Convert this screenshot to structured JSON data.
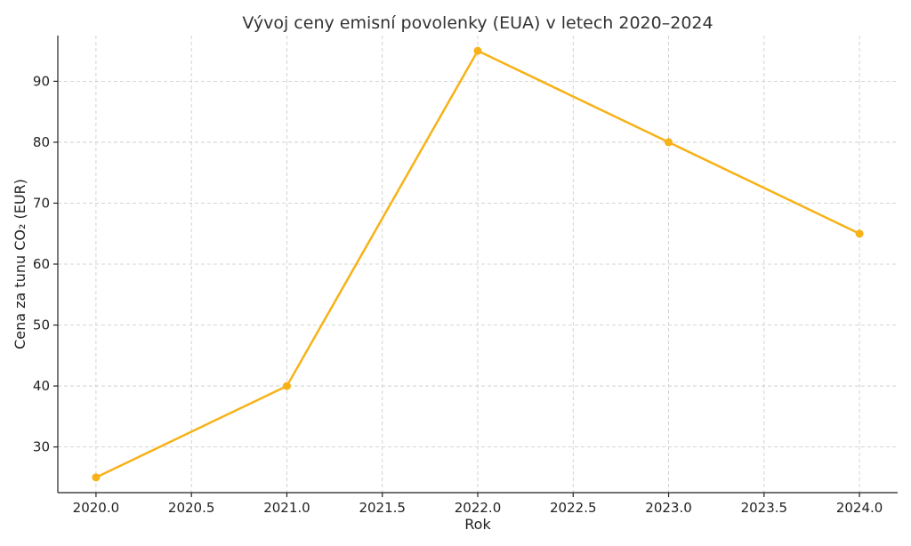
{
  "chart_data": {
    "type": "line",
    "title": "Vývoj ceny emisní povolenky (EUA) v letech 2020–2024",
    "xlabel": "Rok",
    "ylabel": "Cena za tunu CO₂ (EUR)",
    "xlim": [
      2019.8,
      2024.2
    ],
    "ylim": [
      22.5,
      97.5
    ],
    "x_ticks": [
      2020.0,
      2020.5,
      2021.0,
      2021.5,
      2022.0,
      2022.5,
      2023.0,
      2023.5,
      2024.0
    ],
    "x_tick_labels": [
      "2020.0",
      "2020.5",
      "2021.0",
      "2021.5",
      "2022.0",
      "2022.5",
      "2023.0",
      "2023.5",
      "2024.0"
    ],
    "y_ticks": [
      30,
      40,
      50,
      60,
      70,
      80,
      90
    ],
    "y_tick_labels": [
      "30",
      "40",
      "50",
      "60",
      "70",
      "80",
      "90"
    ],
    "grid": true,
    "series": [
      {
        "color": "#f7b217",
        "marker": "circle",
        "x": [
          2020,
          2021,
          2022,
          2023,
          2024
        ],
        "y": [
          25,
          40,
          95,
          80,
          65
        ]
      }
    ]
  }
}
